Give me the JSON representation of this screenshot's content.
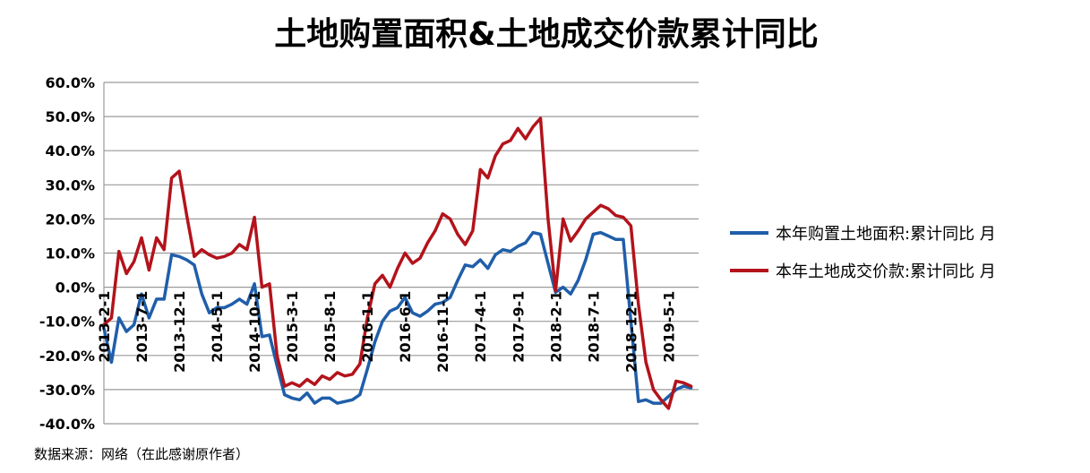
{
  "chart_data": {
    "type": "line",
    "title": "土地购置面积&土地成交价款累计同比",
    "ylim": [
      -40,
      60
    ],
    "y_ticks": [
      "60.0%",
      "50.0%",
      "40.0%",
      "30.0%",
      "20.0%",
      "10.0%",
      "0.0%",
      "-10.0%",
      "-20.0%",
      "-30.0%",
      "-40.0%"
    ],
    "x_tick_labels": [
      "2013-2-1",
      "2013-7-1",
      "2013-12-1",
      "2014-5-1",
      "2014-10-1",
      "2015-3-1",
      "2015-8-1",
      "2016-1-1",
      "2016-6-1",
      "2016-11-1",
      "2017-4-1",
      "2017-9-1",
      "2018-2-1",
      "2018-7-1",
      "2018-12-1",
      "2019-5-1"
    ],
    "x_tick_indices": [
      0,
      5,
      10,
      15,
      20,
      25,
      30,
      35,
      40,
      45,
      50,
      55,
      60,
      65,
      70,
      75
    ],
    "x_count": 79,
    "grid": "horizontal",
    "legend_position": "right",
    "series": [
      {
        "name": "本年购置土地面积:累计同比 月",
        "color": "#1f5eaa",
        "values": [
          -12,
          -22,
          -9,
          -13,
          -11,
          -2,
          -9,
          -3.5,
          -3.5,
          9.5,
          9,
          8,
          6.5,
          -2,
          -7.5,
          -6,
          -6,
          -5,
          -3.5,
          -5,
          1,
          -14.5,
          -14,
          -23,
          -31.5,
          -32.5,
          -33,
          -31,
          -34,
          -32.5,
          -32.5,
          -34,
          -33.5,
          -33,
          -31.5,
          -24,
          -16,
          -10,
          -7,
          -6,
          -3,
          -7.5,
          -8.5,
          -7,
          -5,
          -4.5,
          -3,
          2,
          6.5,
          6,
          8,
          5.5,
          9.5,
          11,
          10.5,
          12,
          13,
          16,
          15.5,
          7,
          -1.5,
          0,
          -2,
          2,
          8,
          15.5,
          16,
          15,
          14,
          14,
          -10,
          -33.5,
          -33,
          -34,
          -34,
          -32,
          -30,
          -29,
          -29.5
        ]
      },
      {
        "name": "本年土地成交价款:累计同比 月",
        "color": "#b3131b",
        "values": [
          -11,
          -9,
          10.5,
          4,
          7.5,
          14.5,
          5,
          14.5,
          11,
          32,
          34,
          21,
          9,
          11,
          9.5,
          8.5,
          9,
          10,
          12.5,
          11,
          20.5,
          0,
          1,
          -20,
          -29,
          -28,
          -29,
          -27,
          -28.5,
          -26,
          -27,
          -25,
          -26,
          -25.5,
          -22.5,
          -9,
          1,
          3.5,
          0,
          5.5,
          10,
          7,
          8.5,
          13,
          16.5,
          21.5,
          20,
          15.5,
          12.5,
          16.5,
          34.5,
          32,
          38.5,
          42,
          43,
          46.5,
          43.5,
          47,
          49.5,
          20,
          -1,
          20,
          13.5,
          16.5,
          20,
          22,
          24,
          23,
          21,
          20.5,
          18,
          -5,
          -22,
          -30,
          -33,
          -35.5,
          -27.5,
          -28,
          -29
        ]
      }
    ]
  },
  "source_text": "数据来源：网络（在此感谢原作者）"
}
